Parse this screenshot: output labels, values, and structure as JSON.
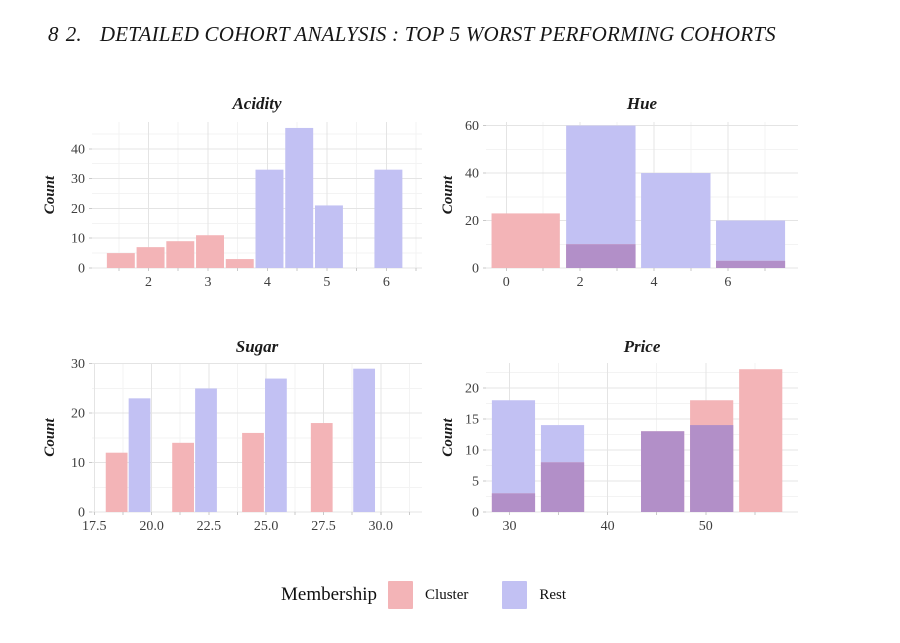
{
  "page": {
    "page_number": "8",
    "section_number": "2.",
    "heading": "DETAILED COHORT ANALYSIS : TOP 5 WORST PERFORMING COHORTS"
  },
  "legend": {
    "label": "Membership",
    "items": [
      {
        "name": "Cluster",
        "color": "#f3b4b7"
      },
      {
        "name": "Rest",
        "color": "#c2c1f3"
      }
    ]
  },
  "colors": {
    "cluster": "#f3b4b7",
    "rest": "#c2c1f3",
    "overlap": "#b28fc8",
    "grid_major": "#e4e4e4",
    "grid_minor": "#f3f3f3",
    "axis_tick": "#c9c9c9",
    "tick_text": "#3f3f3f",
    "title_text": "#1b1b1b"
  },
  "chart_data": [
    {
      "id": "acidity",
      "type": "bar",
      "title": "Acidity",
      "ylabel": "Count",
      "xlim": [
        1.05,
        6.6
      ],
      "ylim": [
        0,
        49
      ],
      "x_ticks": [
        2,
        3,
        4,
        5,
        6
      ],
      "x_tick_labels": [
        "2",
        "3",
        "4",
        "5",
        "6"
      ],
      "y_ticks": [
        0,
        10,
        20,
        30,
        40
      ],
      "grid": true,
      "series": [
        {
          "name": "Cluster",
          "bars": [
            {
              "x0": 1.3,
              "x1": 1.77,
              "count": 5
            },
            {
              "x0": 1.8,
              "x1": 2.27,
              "count": 7
            },
            {
              "x0": 2.3,
              "x1": 2.77,
              "count": 9
            },
            {
              "x0": 2.8,
              "x1": 3.27,
              "count": 11
            },
            {
              "x0": 3.3,
              "x1": 3.77,
              "count": 3
            }
          ]
        },
        {
          "name": "Rest",
          "bars": [
            {
              "x0": 3.8,
              "x1": 4.27,
              "count": 33
            },
            {
              "x0": 4.3,
              "x1": 4.77,
              "count": 47
            },
            {
              "x0": 4.8,
              "x1": 5.27,
              "count": 21
            },
            {
              "x0": 5.8,
              "x1": 6.27,
              "count": 33
            }
          ]
        }
      ]
    },
    {
      "id": "hue",
      "type": "bar",
      "title": "Hue",
      "ylabel": "Count",
      "xlim": [
        -0.55,
        7.9
      ],
      "ylim": [
        0,
        61.5
      ],
      "x_ticks": [
        0,
        2,
        4,
        6
      ],
      "x_tick_labels": [
        "0",
        "2",
        "4",
        "6"
      ],
      "y_ticks": [
        0,
        20,
        40,
        60
      ],
      "grid": true,
      "series": [
        {
          "name": "Cluster",
          "bars": [
            {
              "x0": -0.4,
              "x1": 1.45,
              "count": 23
            },
            {
              "x0": 1.62,
              "x1": 3.5,
              "count": 10
            },
            {
              "x0": 5.68,
              "x1": 7.55,
              "count": 3
            }
          ]
        },
        {
          "name": "Rest",
          "bars": [
            {
              "x0": 1.62,
              "x1": 3.5,
              "count": 60
            },
            {
              "x0": 3.65,
              "x1": 5.53,
              "count": 40
            },
            {
              "x0": 5.68,
              "x1": 7.55,
              "count": 20
            }
          ]
        }
      ]
    },
    {
      "id": "sugar",
      "type": "bar",
      "title": "Sugar",
      "ylabel": "Count",
      "xlim": [
        17.4,
        31.8
      ],
      "ylim": [
        0,
        30.15
      ],
      "x_ticks": [
        17.5,
        20.0,
        22.5,
        25.0,
        27.5,
        30.0
      ],
      "x_tick_labels": [
        "17.5",
        "20.0",
        "22.5",
        "25.0",
        "27.5",
        "30.0"
      ],
      "y_ticks": [
        0,
        10,
        20,
        30
      ],
      "grid": true,
      "series": [
        {
          "name": "Cluster",
          "bars": [
            {
              "x0": 18.0,
              "x1": 18.95,
              "count": 12
            },
            {
              "x0": 20.9,
              "x1": 21.85,
              "count": 14
            },
            {
              "x0": 23.95,
              "x1": 24.9,
              "count": 16
            },
            {
              "x0": 26.95,
              "x1": 27.9,
              "count": 18
            }
          ]
        },
        {
          "name": "Rest",
          "bars": [
            {
              "x0": 19.0,
              "x1": 19.95,
              "count": 23
            },
            {
              "x0": 21.9,
              "x1": 22.85,
              "count": 25
            },
            {
              "x0": 24.95,
              "x1": 25.9,
              "count": 27
            },
            {
              "x0": 28.8,
              "x1": 29.75,
              "count": 29
            }
          ]
        }
      ]
    },
    {
      "id": "price",
      "type": "bar",
      "title": "Price",
      "ylabel": "Count",
      "xlim": [
        27.6,
        59.4
      ],
      "ylim": [
        0,
        24
      ],
      "x_ticks": [
        30,
        40,
        50
      ],
      "x_tick_labels": [
        "30",
        "40",
        "50"
      ],
      "y_ticks": [
        0,
        5,
        10,
        15,
        20
      ],
      "grid": true,
      "series": [
        {
          "name": "Cluster",
          "bars": [
            {
              "x0": 28.2,
              "x1": 32.6,
              "count": 3
            },
            {
              "x0": 33.2,
              "x1": 37.6,
              "count": 8
            },
            {
              "x0": 43.4,
              "x1": 47.8,
              "count": 13
            },
            {
              "x0": 48.4,
              "x1": 52.8,
              "count": 18
            },
            {
              "x0": 53.4,
              "x1": 57.8,
              "count": 23
            }
          ]
        },
        {
          "name": "Rest",
          "bars": [
            {
              "x0": 28.2,
              "x1": 32.6,
              "count": 18
            },
            {
              "x0": 33.2,
              "x1": 37.6,
              "count": 14
            },
            {
              "x0": 43.4,
              "x1": 47.8,
              "count": 13
            },
            {
              "x0": 48.4,
              "x1": 52.8,
              "count": 14
            }
          ]
        }
      ]
    }
  ]
}
